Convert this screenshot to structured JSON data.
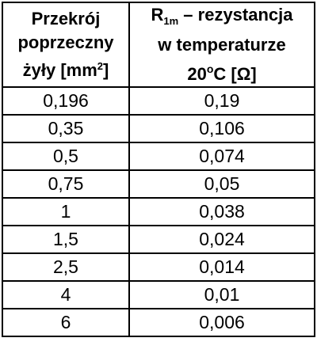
{
  "table": {
    "header": {
      "col1_line1": "Przekrój",
      "col1_line2": "poprzeczny",
      "col1_line3_pre": "żyły [mm",
      "col1_line3_sup": "2",
      "col1_line3_post": "]",
      "col2_r": "R",
      "col2_sub": "1m",
      "col2_line1_post": " – rezystancja",
      "col2_line2": "w temperaturze",
      "col2_line3_pre": "20",
      "col2_line3_sup": "o",
      "col2_line3_post": "C [Ω]"
    },
    "rows": [
      {
        "cross_section": "0,196",
        "resistance": "0,19"
      },
      {
        "cross_section": "0,35",
        "resistance": "0,106"
      },
      {
        "cross_section": "0,5",
        "resistance": "0,074"
      },
      {
        "cross_section": "0,75",
        "resistance": "0,05"
      },
      {
        "cross_section": "1",
        "resistance": "0,038"
      },
      {
        "cross_section": "1,5",
        "resistance": "0,024"
      },
      {
        "cross_section": "2,5",
        "resistance": "0,014"
      },
      {
        "cross_section": "4",
        "resistance": "0,01"
      },
      {
        "cross_section": "6",
        "resistance": "0,006"
      }
    ]
  }
}
